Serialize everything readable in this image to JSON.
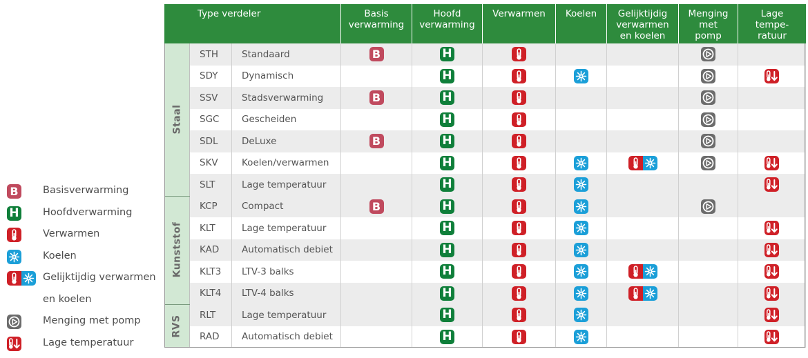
{
  "columns": {
    "type_verdeler": "Type verdeler",
    "basis": "Basis\nverwarming",
    "hoofd": "Hoofd\nverwarming",
    "verwarmen": "Verwarmen",
    "koelen": "Koelen",
    "gelijktijdig": "Gelijktijdig\nverwarmen\nen koelen",
    "menging": "Menging\nmet\npomp",
    "lage": "Lage\ntempe-\nratuur"
  },
  "groups": [
    {
      "label": "Staal",
      "rows": [
        {
          "code": "STH",
          "name": "Standaard",
          "B": true,
          "H": true,
          "V": true,
          "K": false,
          "G": false,
          "M": true,
          "L": false
        },
        {
          "code": "SDY",
          "name": "Dynamisch",
          "B": false,
          "H": true,
          "V": true,
          "K": true,
          "G": false,
          "M": true,
          "L": true
        },
        {
          "code": "SSV",
          "name": "Stadsverwarming",
          "B": true,
          "H": true,
          "V": true,
          "K": false,
          "G": false,
          "M": true,
          "L": false
        },
        {
          "code": "SGC",
          "name": "Gescheiden",
          "B": false,
          "H": true,
          "V": true,
          "K": false,
          "G": false,
          "M": true,
          "L": false
        },
        {
          "code": "SDL",
          "name": "DeLuxe",
          "B": true,
          "H": true,
          "V": true,
          "K": false,
          "G": false,
          "M": true,
          "L": false
        },
        {
          "code": "SKV",
          "name": "Koelen/verwarmen",
          "B": false,
          "H": true,
          "V": true,
          "K": true,
          "G": true,
          "M": true,
          "L": true
        },
        {
          "code": "SLT",
          "name": "Lage temperatuur",
          "B": false,
          "H": true,
          "V": true,
          "K": true,
          "G": false,
          "M": false,
          "L": true
        }
      ]
    },
    {
      "label": "Kunststof",
      "rows": [
        {
          "code": "KCP",
          "name": "Compact",
          "B": true,
          "H": true,
          "V": true,
          "K": true,
          "G": false,
          "M": true,
          "L": false
        },
        {
          "code": "KLT",
          "name": "Lage temperatuur",
          "B": false,
          "H": true,
          "V": true,
          "K": true,
          "G": false,
          "M": false,
          "L": true
        },
        {
          "code": "KAD",
          "name": "Automatisch debiet",
          "B": false,
          "H": true,
          "V": true,
          "K": true,
          "G": false,
          "M": false,
          "L": true
        },
        {
          "code": "KLT3",
          "name": "LTV-3 balks",
          "B": false,
          "H": true,
          "V": true,
          "K": true,
          "G": true,
          "M": false,
          "L": true
        },
        {
          "code": "KLT4",
          "name": "LTV-4 balks",
          "B": false,
          "H": true,
          "V": true,
          "K": true,
          "G": true,
          "M": false,
          "L": true
        }
      ]
    },
    {
      "label": "RVS",
      "rows": [
        {
          "code": "RLT",
          "name": "Lage temperatuur",
          "B": false,
          "H": true,
          "V": true,
          "K": true,
          "G": false,
          "M": false,
          "L": true
        },
        {
          "code": "RAD",
          "name": "Automatisch debiet",
          "B": false,
          "H": true,
          "V": true,
          "K": true,
          "G": false,
          "M": false,
          "L": true
        }
      ]
    }
  ],
  "legend": [
    {
      "icon": "B",
      "label": "Basisverwarming"
    },
    {
      "icon": "H",
      "label": "Hoofdverwarming"
    },
    {
      "icon": "V",
      "label": "Verwarmen"
    },
    {
      "icon": "K",
      "label": "Koelen"
    },
    {
      "icon": "G",
      "label": "Gelijktijdig verwarmen"
    },
    {
      "icon": "",
      "label": "en koelen"
    },
    {
      "icon": "M",
      "label": "Menging met pomp"
    },
    {
      "icon": "L",
      "label": "Lage temperatuur"
    }
  ],
  "icon_names": {
    "B": "basisverwarming-icon",
    "H": "hoofdverwarming-icon",
    "V": "thermometer-icon",
    "K": "snowflake-icon",
    "G": "heat-cool-icon",
    "M": "pump-icon",
    "L": "low-temperature-icon"
  },
  "colors": {
    "header_green": "#2e8b3d",
    "group_green": "#d2e8d4",
    "row_shade": "#ececec",
    "basis": "#c04a5e",
    "hoofd": "#0f7f3a",
    "verwarmen": "#cf2027",
    "koelen": "#1b9fd8",
    "menging": "#6c6c6c"
  }
}
